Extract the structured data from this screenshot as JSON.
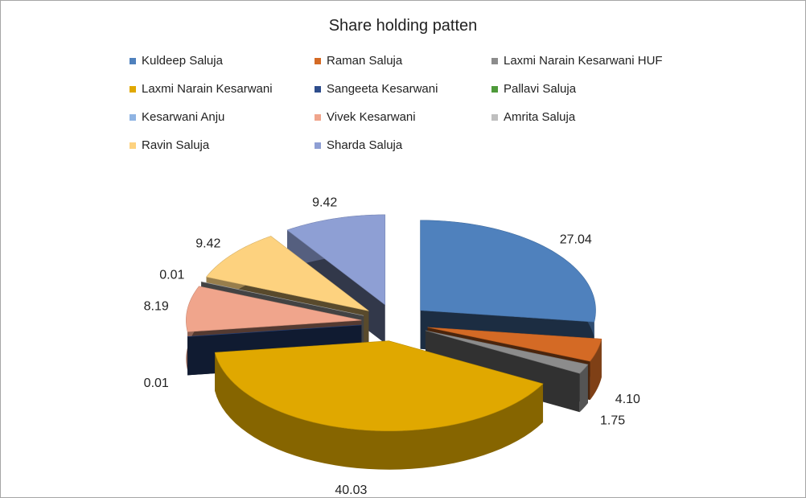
{
  "chart_data": {
    "type": "pie",
    "title": "Share holding patten",
    "legend_position": "top",
    "exploded": true,
    "three_d": true,
    "slices": [
      {
        "name": "Kuldeep Saluja",
        "value": 27.04,
        "label": "27.04",
        "color": "#4f81bd"
      },
      {
        "name": "Raman Saluja",
        "value": 4.1,
        "label": "4.10",
        "color": "#d46a25"
      },
      {
        "name": "Laxmi Narain Kesarwani HUF",
        "value": 1.75,
        "label": "1.75",
        "color": "#8c8c8c"
      },
      {
        "name": "Laxmi Narain Kesarwani",
        "value": 40.03,
        "label": "40.03",
        "color": "#e0a800"
      },
      {
        "name": "Sangeeta Kesarwani",
        "value": 0.01,
        "label": "0.01",
        "color": "#2e4d8c"
      },
      {
        "name": "Pallavi Saluja",
        "value": 0.0,
        "label": "",
        "color": "#4e9a3a"
      },
      {
        "name": "Kesarwani Anju",
        "value": 0.0,
        "label": "",
        "color": "#8fb4e3"
      },
      {
        "name": "Vivek Kesarwani",
        "value": 8.19,
        "label": "8.19",
        "color": "#f0a58c"
      },
      {
        "name": "Amrita Saluja",
        "value": 0.01,
        "label": "0.01",
        "color": "#bfbfbf"
      },
      {
        "name": "Ravin Saluja",
        "value": 9.42,
        "label": "9.42",
        "color": "#fdd27f"
      },
      {
        "name": "Sharda Saluja",
        "value": 9.42,
        "label": "9.42",
        "color": "#8e9fd4"
      }
    ]
  }
}
